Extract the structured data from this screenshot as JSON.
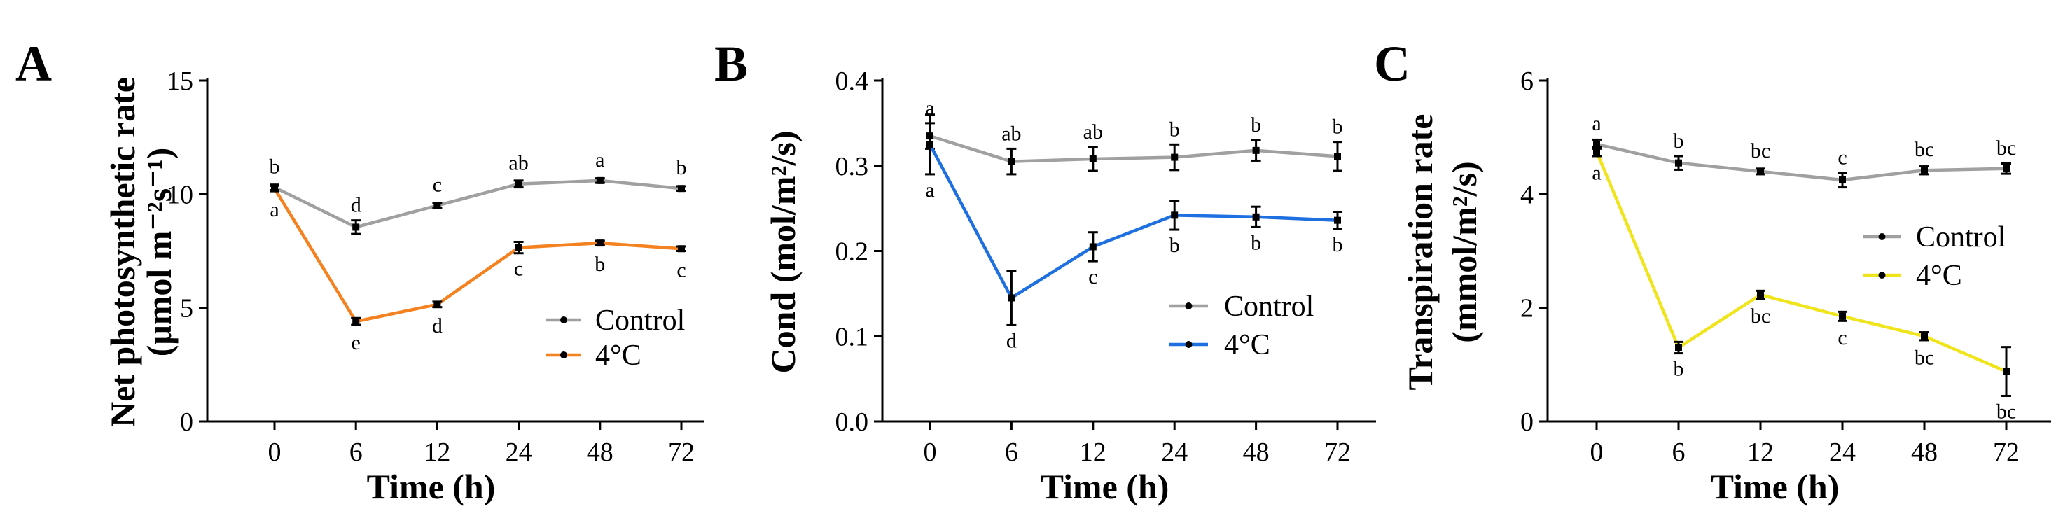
{
  "chart_data": [
    {
      "type": "line",
      "panel_label": "A",
      "title": "",
      "xlabel": "Time (h)",
      "ylabel_lines": [
        "Net photosynthetic rate",
        "(μmol m⁻²s⁻¹)"
      ],
      "categories": [
        "0",
        "6",
        "12",
        "24",
        "48",
        "72"
      ],
      "ylim": [
        0,
        15
      ],
      "yticks": [
        0,
        5,
        10,
        15
      ],
      "ytick_labels": [
        "0",
        "5",
        "10",
        "15"
      ],
      "legend": {
        "position": "bottom-right",
        "entries": [
          "Control",
          "4°C"
        ]
      },
      "series": [
        {
          "name": "Control",
          "color": "#a0a0a0",
          "values": [
            10.3,
            8.55,
            9.5,
            10.45,
            10.6,
            10.25
          ],
          "errors": [
            0.12,
            0.3,
            0.12,
            0.15,
            0.1,
            0.1
          ],
          "labels": [
            "b",
            "d",
            "c",
            "ab",
            "a",
            "b"
          ],
          "label_side": "above"
        },
        {
          "name": "4°C",
          "color": "#f48220",
          "values": [
            10.25,
            4.4,
            5.15,
            7.65,
            7.85,
            7.6
          ],
          "errors": [
            0.12,
            0.15,
            0.12,
            0.25,
            0.1,
            0.1
          ],
          "labels": [
            "a",
            "e",
            "d",
            "c",
            "b",
            "c"
          ],
          "label_side": "below"
        }
      ]
    },
    {
      "type": "line",
      "panel_label": "B",
      "title": "",
      "xlabel": "Time (h)",
      "ylabel_lines": [
        "Cond (mol/m²/s)"
      ],
      "categories": [
        "0",
        "6",
        "12",
        "24",
        "48",
        "72"
      ],
      "ylim": [
        0,
        0.4
      ],
      "yticks": [
        0,
        0.1,
        0.2,
        0.3,
        0.4
      ],
      "ytick_labels": [
        "0.0",
        "0.1",
        "0.2",
        "0.3",
        "0.4"
      ],
      "legend": {
        "position": "bottom-right",
        "entries": [
          "Control",
          "4°C"
        ]
      },
      "series": [
        {
          "name": "Control",
          "color": "#a0a0a0",
          "values": [
            0.335,
            0.305,
            0.308,
            0.31,
            0.318,
            0.311
          ],
          "errors": [
            0.015,
            0.015,
            0.014,
            0.015,
            0.012,
            0.017
          ],
          "labels": [
            "a",
            "ab",
            "ab",
            "b",
            "b",
            "b"
          ],
          "label_side": "above"
        },
        {
          "name": "4°C",
          "color": "#1e6fe0",
          "values": [
            0.325,
            0.145,
            0.205,
            0.242,
            0.24,
            0.236
          ],
          "errors": [
            0.035,
            0.032,
            0.017,
            0.017,
            0.012,
            0.01
          ],
          "labels": [
            "a",
            "d",
            "c",
            "b",
            "b",
            "b"
          ],
          "label_side": "below"
        }
      ]
    },
    {
      "type": "line",
      "panel_label": "C",
      "title": "",
      "xlabel": "Time (h)",
      "ylabel_lines": [
        "Transpiration rate",
        "(mmol/m²/s)"
      ],
      "categories": [
        "0",
        "6",
        "12",
        "24",
        "48",
        "72"
      ],
      "ylim": [
        0,
        6
      ],
      "yticks": [
        0,
        2,
        4,
        6
      ],
      "ytick_labels": [
        "0",
        "2",
        "4",
        "6"
      ],
      "legend": {
        "position": "right",
        "entries": [
          "Control",
          "4°C"
        ]
      },
      "series": [
        {
          "name": "Control",
          "color": "#a0a0a0",
          "values": [
            4.88,
            4.55,
            4.4,
            4.25,
            4.42,
            4.45
          ],
          "errors": [
            0.08,
            0.12,
            0.05,
            0.13,
            0.07,
            0.09
          ],
          "labels": [
            "a",
            "b",
            "bc",
            "c",
            "bc",
            "bc"
          ],
          "label_side": "above"
        },
        {
          "name": "4°C",
          "color": "#f0e41c",
          "values": [
            4.75,
            1.3,
            2.23,
            1.85,
            1.5,
            0.88
          ],
          "errors": [
            0.08,
            0.1,
            0.07,
            0.08,
            0.07,
            0.43
          ],
          "labels": [
            "a",
            "b",
            "bc",
            "c",
            "bc",
            "bc"
          ],
          "label_side": "below"
        }
      ]
    }
  ]
}
